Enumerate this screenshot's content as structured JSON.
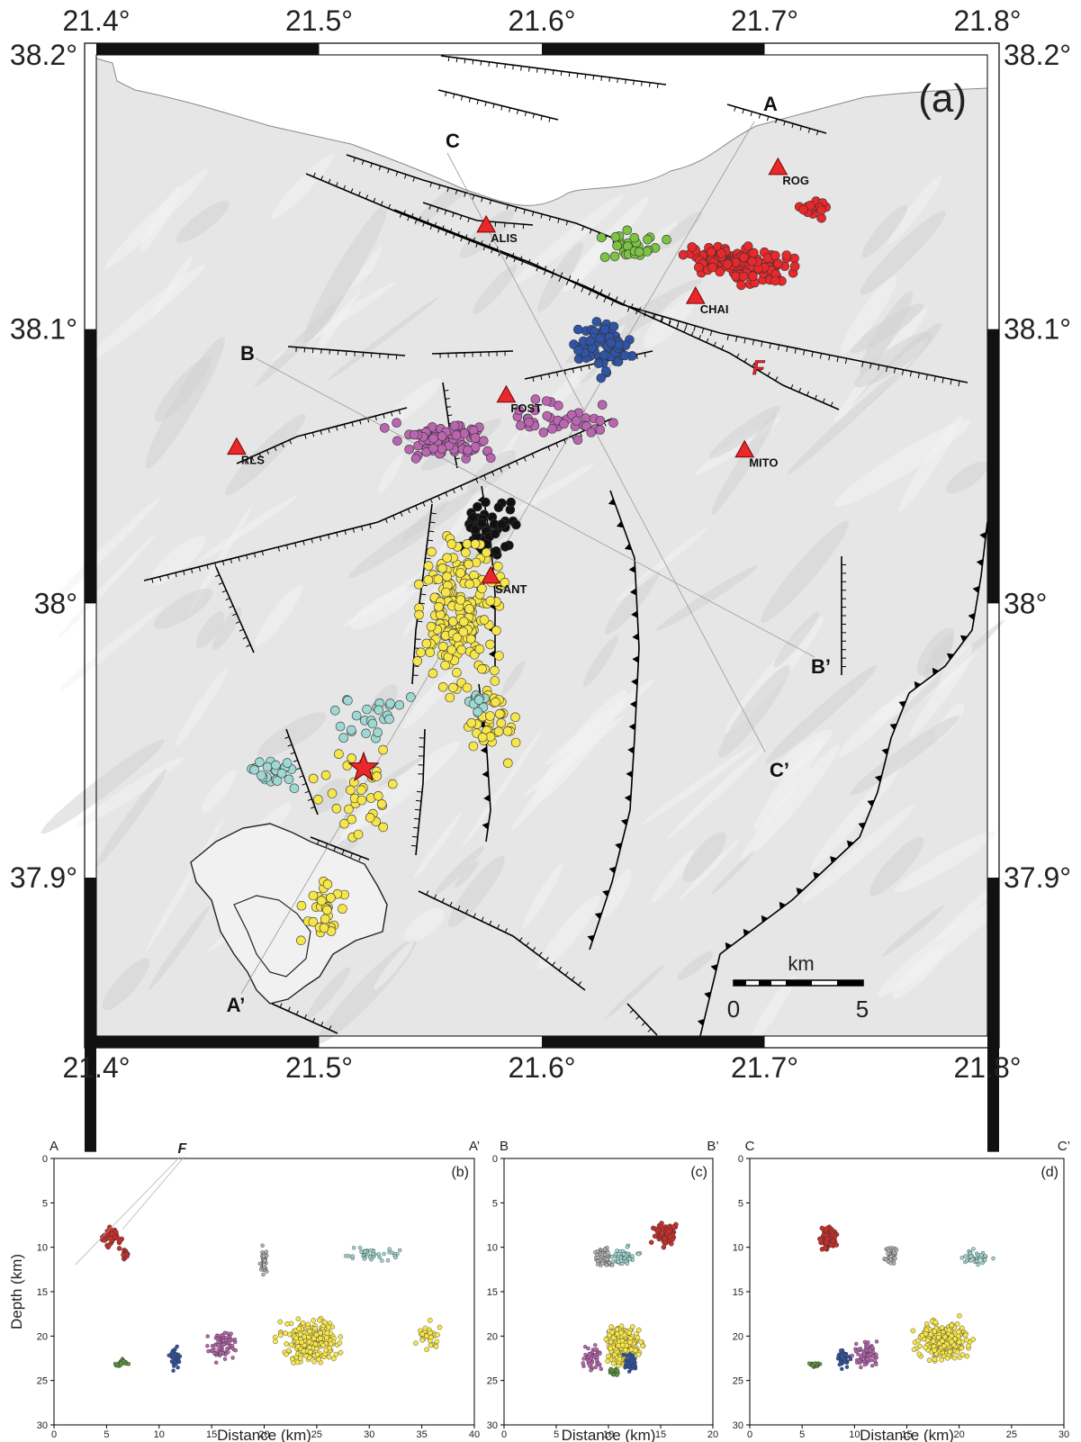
{
  "map": {
    "panel_label": "(a)",
    "lon_ticks": [
      "21.4°",
      "21.5°",
      "21.6°",
      "21.7°",
      "21.8°"
    ],
    "lat_ticks": [
      "38.2°",
      "38.1°",
      "38°",
      "37.9°"
    ],
    "fault_label": "F",
    "scale_bar": {
      "unit": "km",
      "start": "0",
      "end": "5"
    },
    "stations": [
      {
        "name": "ROG",
        "lon": 21.706,
        "lat": 38.159
      },
      {
        "name": "ALIS",
        "lon": 21.575,
        "lat": 38.138
      },
      {
        "name": "CHAI",
        "lon": 21.669,
        "lat": 38.112
      },
      {
        "name": "FOST",
        "lon": 21.584,
        "lat": 38.076
      },
      {
        "name": "RLS",
        "lon": 21.463,
        "lat": 38.057
      },
      {
        "name": "MITO",
        "lon": 21.691,
        "lat": 38.056
      },
      {
        "name": "SANT",
        "lon": 21.577,
        "lat": 38.01
      }
    ],
    "mainshock": {
      "lon": 21.52,
      "lat": 37.94
    },
    "sections": [
      {
        "start": "A",
        "end": "A’"
      },
      {
        "start": "B",
        "end": "B’"
      },
      {
        "start": "C",
        "end": "C’"
      }
    ],
    "clusters": [
      {
        "name": "red",
        "color": "#e8282b"
      },
      {
        "name": "green",
        "color": "#7cc243"
      },
      {
        "name": "blue",
        "color": "#2f54a6"
      },
      {
        "name": "purple",
        "color": "#b965b0"
      },
      {
        "name": "black",
        "color": "#111111"
      },
      {
        "name": "yellow",
        "color": "#f7e64a"
      },
      {
        "name": "cyan",
        "color": "#9ed8d3"
      }
    ]
  },
  "sections": [
    {
      "panel_label": "(b)",
      "start": "A",
      "end": "A’",
      "xmax": 40,
      "x_ticks": [
        "0",
        "5",
        "10",
        "15",
        "20",
        "25",
        "30",
        "35",
        "40"
      ],
      "fault_label": "F"
    },
    {
      "panel_label": "(c)",
      "start": "B",
      "end": "B’",
      "xmax": 20,
      "x_ticks": [
        "0",
        "5",
        "10",
        "15",
        "20"
      ]
    },
    {
      "panel_label": "(d)",
      "start": "C",
      "end": "C’",
      "xmax": 30,
      "x_ticks": [
        "0",
        "5",
        "10",
        "15",
        "20",
        "25",
        "30"
      ]
    }
  ],
  "sections_common": {
    "xlabel": "Distance (km)",
    "ylabel": "Depth (km)",
    "y_ticks": [
      "0",
      "5",
      "10",
      "15",
      "20",
      "25",
      "30"
    ]
  }
}
